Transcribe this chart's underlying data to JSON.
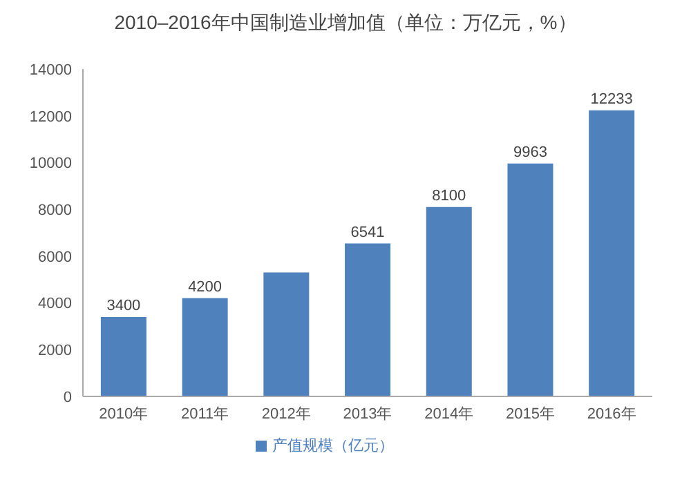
{
  "chart_data": {
    "type": "bar",
    "title": "2010–2016年中国制造业增加值（单位：万亿元，%）",
    "categories": [
      "2010年",
      "2011年",
      "2012年",
      "2013年",
      "2014年",
      "2015年",
      "2016年"
    ],
    "series": [
      {
        "name": "产值规模（亿元）",
        "color": "#4f81bd",
        "values": [
          3400,
          4200,
          5300,
          6541,
          8100,
          9963,
          12233
        ],
        "value_labels": [
          "3400",
          "4200",
          null,
          "6541",
          "8100",
          "9963",
          "12233"
        ]
      }
    ],
    "ylim": [
      0,
      14000
    ],
    "yticks": [
      0,
      2000,
      4000,
      6000,
      8000,
      10000,
      12000,
      14000
    ],
    "grid": false,
    "legend": "bottom"
  }
}
